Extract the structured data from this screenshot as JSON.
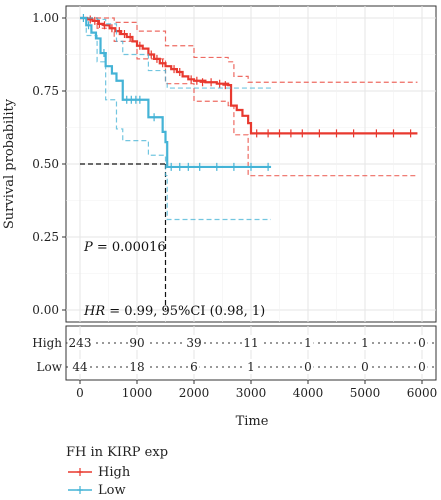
{
  "chart_data": {
    "type": "line",
    "subtype": "kaplan-meier",
    "ylabel": "Survival probability",
    "xlabel": "Time",
    "xlim": [
      0,
      6000
    ],
    "ylim": [
      0,
      1
    ],
    "x_ticks": [
      0,
      1000,
      2000,
      3000,
      4000,
      5000,
      6000
    ],
    "y_ticks": [
      0.0,
      0.25,
      0.5,
      0.75,
      1.0
    ],
    "y_tick_labels": [
      "0.00",
      "0.25",
      "0.50",
      "0.75",
      "1.00"
    ],
    "grid": true,
    "annotations": {
      "p_prefix": "P",
      "p_value": " = 0.00016",
      "hr_prefix": "HR",
      "hr_value": " = 0.99, 95%CI (0.98, 1)"
    },
    "median_reference": {
      "y": 0.5,
      "x": 1500
    },
    "series": [
      {
        "name": "High",
        "color": "#e8392f",
        "steps": [
          [
            0,
            1.0
          ],
          [
            120,
            0.995
          ],
          [
            220,
            0.99
          ],
          [
            320,
            0.98
          ],
          [
            420,
            0.975
          ],
          [
            520,
            0.965
          ],
          [
            620,
            0.955
          ],
          [
            720,
            0.945
          ],
          [
            820,
            0.935
          ],
          [
            920,
            0.92
          ],
          [
            1000,
            0.905
          ],
          [
            1100,
            0.895
          ],
          [
            1200,
            0.875
          ],
          [
            1300,
            0.86
          ],
          [
            1400,
            0.845
          ],
          [
            1500,
            0.835
          ],
          [
            1600,
            0.825
          ],
          [
            1700,
            0.815
          ],
          [
            1800,
            0.8
          ],
          [
            1900,
            0.79
          ],
          [
            2000,
            0.785
          ],
          [
            2200,
            0.78
          ],
          [
            2400,
            0.775
          ],
          [
            2600,
            0.77
          ],
          [
            2650,
            0.7
          ],
          [
            2750,
            0.685
          ],
          [
            2850,
            0.665
          ],
          [
            2950,
            0.64
          ],
          [
            3000,
            0.605
          ],
          [
            3200,
            0.605
          ],
          [
            4000,
            0.605
          ],
          [
            5000,
            0.605
          ],
          [
            5920,
            0.605
          ]
        ],
        "ci_upper": [
          [
            0,
            1.0
          ],
          [
            300,
            1.0
          ],
          [
            600,
            0.985
          ],
          [
            1000,
            0.955
          ],
          [
            1500,
            0.905
          ],
          [
            2000,
            0.865
          ],
          [
            2600,
            0.85
          ],
          [
            2700,
            0.8
          ],
          [
            2950,
            0.78
          ],
          [
            5920,
            0.78
          ]
        ],
        "ci_lower": [
          [
            0,
            1.0
          ],
          [
            300,
            0.965
          ],
          [
            600,
            0.92
          ],
          [
            1000,
            0.86
          ],
          [
            1500,
            0.775
          ],
          [
            2000,
            0.715
          ],
          [
            2600,
            0.7
          ],
          [
            2700,
            0.6
          ],
          [
            2950,
            0.46
          ],
          [
            5920,
            0.46
          ]
        ],
        "censors": [
          [
            180,
            0.995
          ],
          [
            260,
            0.99
          ],
          [
            340,
            0.98
          ],
          [
            430,
            0.975
          ],
          [
            560,
            0.965
          ],
          [
            690,
            0.955
          ],
          [
            780,
            0.945
          ],
          [
            880,
            0.935
          ],
          [
            1050,
            0.905
          ],
          [
            1250,
            0.875
          ],
          [
            1350,
            0.86
          ],
          [
            1450,
            0.845
          ],
          [
            1650,
            0.825
          ],
          [
            1750,
            0.815
          ],
          [
            1950,
            0.79
          ],
          [
            2050,
            0.785
          ],
          [
            2150,
            0.78
          ],
          [
            2300,
            0.78
          ],
          [
            2450,
            0.775
          ],
          [
            2550,
            0.77
          ],
          [
            3100,
            0.605
          ],
          [
            3300,
            0.605
          ],
          [
            3500,
            0.605
          ],
          [
            3700,
            0.605
          ],
          [
            3900,
            0.605
          ],
          [
            4200,
            0.605
          ],
          [
            4500,
            0.605
          ],
          [
            4800,
            0.605
          ],
          [
            5200,
            0.605
          ],
          [
            5500,
            0.605
          ],
          [
            5800,
            0.605
          ]
        ]
      },
      {
        "name": "Low",
        "color": "#44b3d6",
        "steps": [
          [
            0,
            1.0
          ],
          [
            110,
            0.975
          ],
          [
            200,
            0.95
          ],
          [
            280,
            0.93
          ],
          [
            360,
            0.88
          ],
          [
            450,
            0.835
          ],
          [
            560,
            0.81
          ],
          [
            640,
            0.785
          ],
          [
            750,
            0.72
          ],
          [
            1100,
            0.72
          ],
          [
            1200,
            0.66
          ],
          [
            1400,
            0.66
          ],
          [
            1450,
            0.61
          ],
          [
            1500,
            0.575
          ],
          [
            1530,
            0.49
          ],
          [
            3350,
            0.49
          ]
        ],
        "ci_upper": [
          [
            0,
            1.0
          ],
          [
            300,
            0.995
          ],
          [
            450,
            0.98
          ],
          [
            640,
            0.92
          ],
          [
            750,
            0.875
          ],
          [
            1200,
            0.82
          ],
          [
            1500,
            0.78
          ],
          [
            1530,
            0.76
          ],
          [
            3350,
            0.76
          ]
        ],
        "ci_lower": [
          [
            0,
            1.0
          ],
          [
            110,
            0.94
          ],
          [
            300,
            0.85
          ],
          [
            450,
            0.72
          ],
          [
            640,
            0.62
          ],
          [
            750,
            0.58
          ],
          [
            1200,
            0.53
          ],
          [
            1500,
            0.46
          ],
          [
            1530,
            0.31
          ],
          [
            3350,
            0.31
          ]
        ],
        "censors": [
          [
            60,
            1.0
          ],
          [
            150,
            0.975
          ],
          [
            420,
            0.88
          ],
          [
            820,
            0.72
          ],
          [
            900,
            0.72
          ],
          [
            980,
            0.72
          ],
          [
            1050,
            0.72
          ],
          [
            1300,
            0.66
          ],
          [
            1600,
            0.49
          ],
          [
            1750,
            0.49
          ],
          [
            1900,
            0.49
          ],
          [
            2100,
            0.49
          ],
          [
            2400,
            0.49
          ],
          [
            2700,
            0.49
          ],
          [
            3000,
            0.49
          ],
          [
            3300,
            0.49
          ]
        ]
      }
    ],
    "risk_table": {
      "times": [
        0,
        1000,
        2000,
        3000,
        4000,
        5000,
        6000
      ],
      "rows": [
        {
          "label": "High",
          "counts": [
            "243",
            "90",
            "39",
            "11",
            "1",
            "1",
            "0"
          ]
        },
        {
          "label": "Low",
          "counts": [
            "44",
            "18",
            "6",
            "1",
            "0",
            "0",
            "0"
          ]
        }
      ],
      "x_tick_labels": [
        "0",
        "1000",
        "2000",
        "3000",
        "4000",
        "5000",
        "6000"
      ],
      "xlabel": "Time"
    },
    "legend": {
      "title": "FH in KIRP exp",
      "placement": "bottom-left",
      "items": [
        "High",
        "Low"
      ]
    }
  }
}
